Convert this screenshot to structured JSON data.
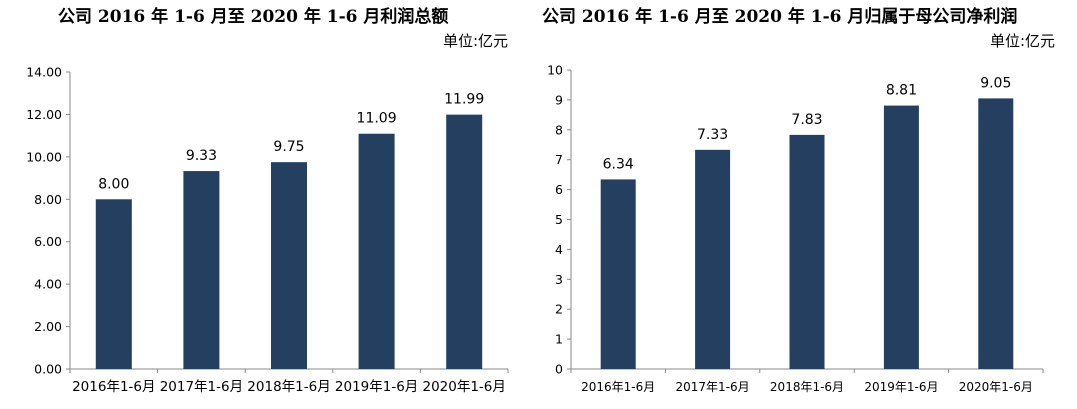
{
  "bar_color": "#243f60",
  "chart_data": [
    {
      "type": "bar",
      "title": "公司 2016 年 1-6 月至 2020 年 1-6 月利润总额",
      "unit": "单位:亿元",
      "categories": [
        "2016年1-6月",
        "2017年1-6月",
        "2018年1-6月",
        "2019年1-6月",
        "2020年1-6月"
      ],
      "values": [
        8.0,
        9.33,
        9.75,
        11.09,
        11.99
      ],
      "value_labels": [
        "8.00",
        "9.33",
        "9.75",
        "11.09",
        "11.99"
      ],
      "yticks": [
        "0.00",
        "2.00",
        "4.00",
        "6.00",
        "8.00",
        "10.00",
        "12.00",
        "14.00"
      ],
      "ylim": [
        0,
        14
      ],
      "grid": false,
      "xlabel": "",
      "ylabel": ""
    },
    {
      "type": "bar",
      "title": "公司 2016 年 1-6 月至 2020 年 1-6 月归属于母公司净利润",
      "unit": "单位:亿元",
      "categories": [
        "2016年1-6月",
        "2017年1-6月",
        "2018年1-6月",
        "2019年1-6月",
        "2020年1-6月"
      ],
      "values": [
        6.34,
        7.33,
        7.83,
        8.81,
        9.05
      ],
      "value_labels": [
        "6.34",
        "7.33",
        "7.83",
        "8.81",
        "9.05"
      ],
      "yticks": [
        "0",
        "1",
        "2",
        "3",
        "4",
        "5",
        "6",
        "7",
        "8",
        "9",
        "10"
      ],
      "ylim": [
        0,
        10
      ],
      "grid": false,
      "xlabel": "",
      "ylabel": ""
    }
  ]
}
